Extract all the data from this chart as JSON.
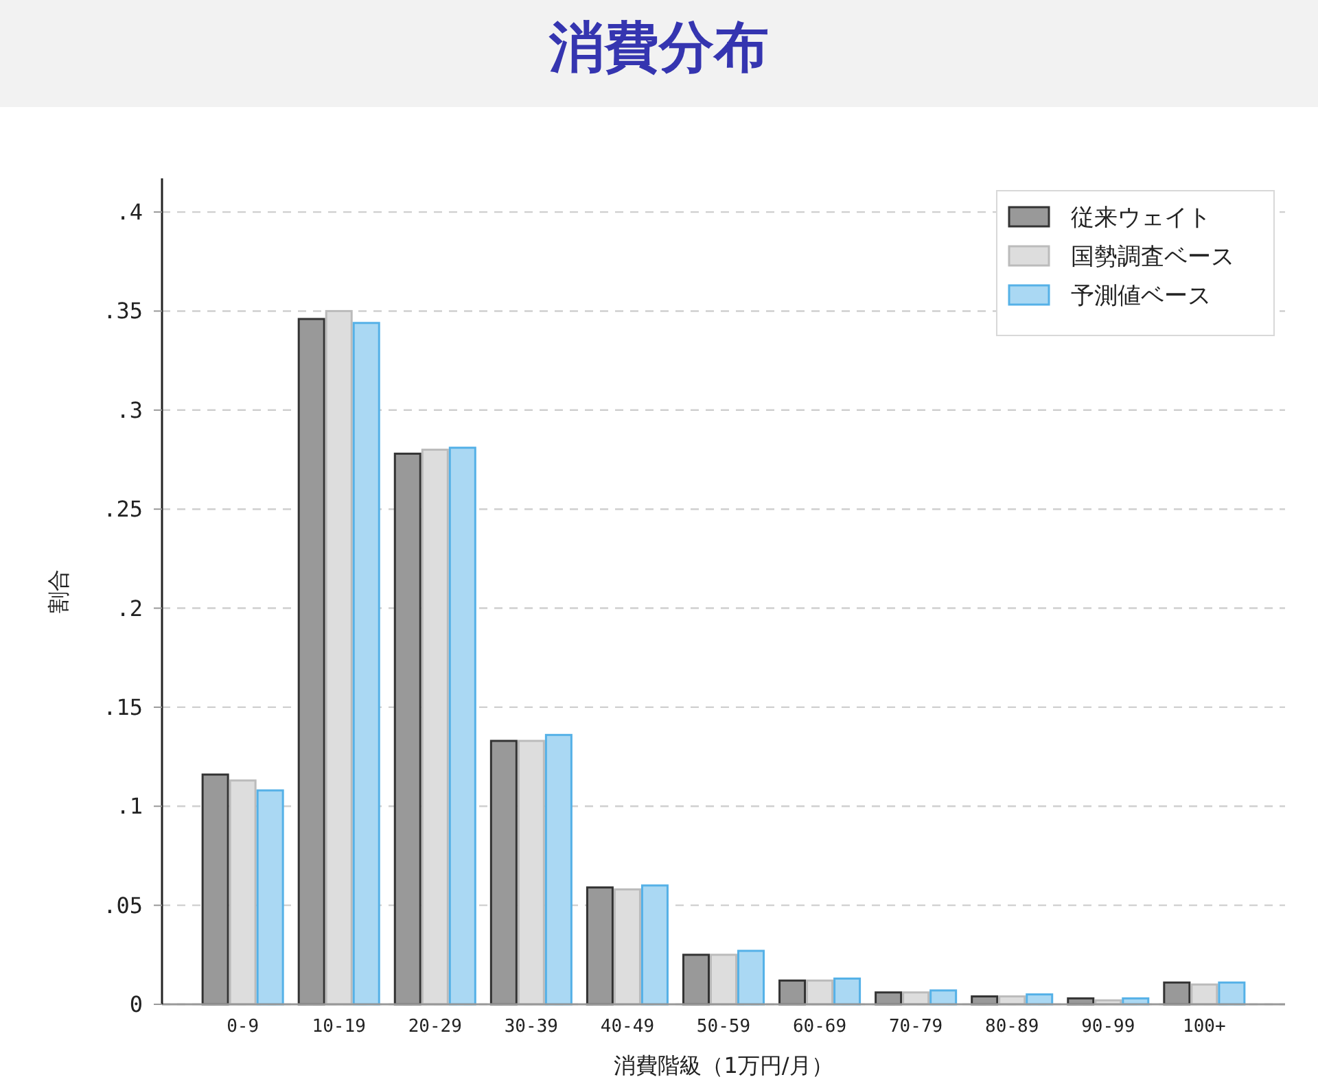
{
  "chart_data": {
    "type": "bar",
    "title": "消費分布",
    "xlabel": "消費階級（1万円/月）",
    "ylabel": "割合",
    "categories": [
      "0-9",
      "10-19",
      "20-29",
      "30-39",
      "40-49",
      "50-59",
      "60-69",
      "70-79",
      "80-89",
      "90-99",
      "100+"
    ],
    "series": [
      {
        "name": "従来ウェイト",
        "color": "#999999",
        "values": [
          0.116,
          0.346,
          0.278,
          0.133,
          0.059,
          0.025,
          0.012,
          0.006,
          0.004,
          0.003,
          0.011
        ]
      },
      {
        "name": "国勢調査ベース",
        "color": "#dddddd",
        "values": [
          0.113,
          0.35,
          0.28,
          0.133,
          0.058,
          0.025,
          0.012,
          0.006,
          0.004,
          0.002,
          0.01
        ]
      },
      {
        "name": "予測値ベース",
        "color": "#aad8f3",
        "values": [
          0.108,
          0.344,
          0.281,
          0.136,
          0.06,
          0.027,
          0.013,
          0.007,
          0.005,
          0.003,
          0.011
        ]
      }
    ],
    "ylim": [
      0,
      0.417
    ],
    "yticks": [
      0,
      {
        "value": 0.05,
        "label": ".05"
      },
      {
        "value": 0.1,
        "label": ".1"
      },
      {
        "value": 0.15,
        "label": ".15"
      },
      {
        "value": 0.2,
        "label": ".2"
      },
      {
        "value": 0.25,
        "label": ".25"
      },
      {
        "value": 0.3,
        "label": ".3"
      },
      {
        "value": 0.35,
        "label": ".35"
      },
      {
        "value": 0.4,
        "label": ".4"
      }
    ],
    "grid": "y",
    "legend": "top right"
  }
}
